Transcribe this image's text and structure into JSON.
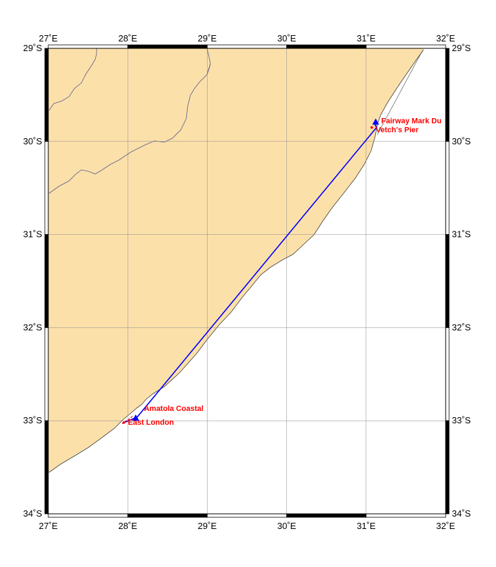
{
  "map": {
    "lon_range": [
      27,
      32
    ],
    "lat_range": [
      -34,
      -29
    ],
    "grid": true,
    "colors": {
      "land": "#fce0aa",
      "ocean": "#ffffff",
      "coastline": "#3c3c3c",
      "border": "#5a5a8c",
      "grid": "#888888",
      "route": "#0000ff",
      "label": "#ff0000",
      "frame": "#000000"
    },
    "lon_ticks": [
      {
        "value": 27,
        "label": "27˚E"
      },
      {
        "value": 28,
        "label": "28˚E"
      },
      {
        "value": 29,
        "label": "29˚E"
      },
      {
        "value": 30,
        "label": "30˚E"
      },
      {
        "value": 31,
        "label": "31˚E"
      },
      {
        "value": 32,
        "label": "32˚E"
      }
    ],
    "lat_ticks": [
      {
        "value": -29,
        "label": "29˚S"
      },
      {
        "value": -30,
        "label": "30˚S"
      },
      {
        "value": -31,
        "label": "31˚S"
      },
      {
        "value": -32,
        "label": "32˚S"
      },
      {
        "value": -33,
        "label": "33˚S"
      },
      {
        "value": -34,
        "label": "34˚S"
      }
    ],
    "places": [
      {
        "name": "Fairway Mark Du",
        "lon": 31.12,
        "lat": -29.79,
        "marker": "triangle"
      },
      {
        "name": "Vetch's Pier",
        "lon": 31.07,
        "lat": -29.85,
        "marker": "dot"
      },
      {
        "name": "Amatola Coastal",
        "lon": 28.1,
        "lat": -32.97,
        "marker": "triangle"
      },
      {
        "name": "East London",
        "lon": 27.95,
        "lat": -33.02,
        "marker": "dot"
      }
    ],
    "route": [
      {
        "lon": 27.93,
        "lat": -33.03
      },
      {
        "lon": 28.12,
        "lat": -32.96
      },
      {
        "lon": 31.13,
        "lat": -29.85
      },
      {
        "lon": 31.1,
        "lat": -29.8
      }
    ]
  }
}
